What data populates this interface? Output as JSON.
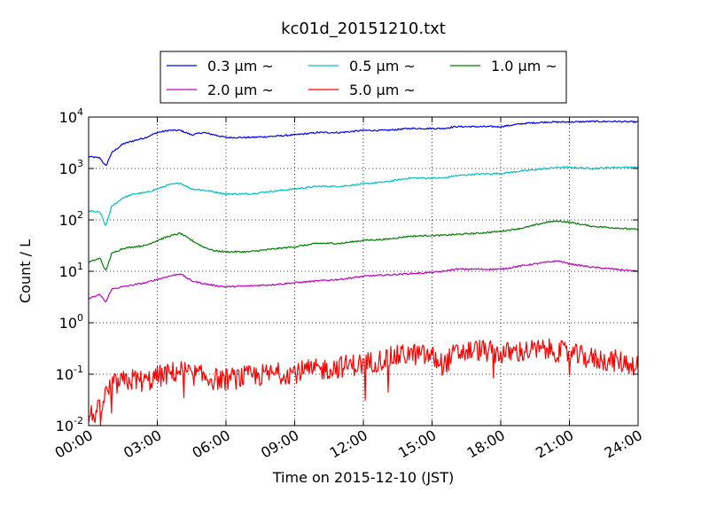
{
  "chart_data": {
    "type": "line",
    "title": "kc01d_20151210.txt",
    "xlabel": "Time on 2015-12-10 (JST)",
    "ylabel": "Count / L",
    "yscale": "log",
    "ylim": [
      0.01,
      10000
    ],
    "xlim": [
      "00:00",
      "24:00"
    ],
    "grid": true,
    "legend_position": "top-center",
    "x_ticks": [
      "00:00",
      "03:00",
      "06:00",
      "09:00",
      "12:00",
      "15:00",
      "18:00",
      "21:00",
      "24:00"
    ],
    "y_ticks": [
      {
        "base": "10",
        "exp": "-2"
      },
      {
        "base": "10",
        "exp": "-1"
      },
      {
        "base": "10",
        "exp": "0"
      },
      {
        "base": "10",
        "exp": "1"
      },
      {
        "base": "10",
        "exp": "2"
      },
      {
        "base": "10",
        "exp": "3"
      },
      {
        "base": "10",
        "exp": "4"
      }
    ],
    "x_hours": [
      0,
      0.5,
      0.75,
      1.0,
      1.5,
      2.0,
      2.5,
      3.0,
      3.5,
      4.0,
      4.5,
      5.0,
      5.5,
      6.0,
      7.0,
      8.0,
      9.0,
      10.0,
      11.0,
      12.0,
      13.0,
      14.0,
      15.0,
      15.5,
      16.0,
      17.0,
      18.0,
      19.0,
      20.0,
      20.5,
      21.0,
      22.0,
      23.0,
      24.0
    ],
    "series": [
      {
        "name": "0.3 μm ~",
        "color": "#0000ff",
        "values": [
          1700,
          1600,
          1100,
          2000,
          3000,
          3500,
          4000,
          5000,
          5500,
          5500,
          4500,
          5000,
          4500,
          4000,
          4000,
          4200,
          4500,
          5000,
          5000,
          5500,
          5500,
          6000,
          6000,
          6000,
          6500,
          6500,
          6500,
          7500,
          8000,
          8000,
          8000,
          8200,
          8200,
          8000
        ]
      },
      {
        "name": "0.5 μm ~",
        "color": "#00c0c0",
        "values": [
          150,
          140,
          75,
          180,
          270,
          320,
          340,
          400,
          480,
          520,
          400,
          380,
          350,
          320,
          320,
          360,
          400,
          450,
          450,
          500,
          550,
          650,
          650,
          650,
          720,
          780,
          800,
          900,
          1000,
          1050,
          1050,
          1000,
          1050,
          1050
        ]
      },
      {
        "name": "1.0 μm ~",
        "color": "#008000",
        "values": [
          15,
          18,
          10,
          22,
          28,
          30,
          32,
          40,
          48,
          55,
          40,
          30,
          25,
          24,
          24,
          27,
          30,
          35,
          35,
          40,
          42,
          48,
          50,
          50,
          52,
          55,
          60,
          70,
          90,
          95,
          90,
          75,
          70,
          65
        ]
      },
      {
        "name": "2.0 μm ~",
        "color": "#c000c0",
        "values": [
          3,
          3.5,
          2.5,
          4.5,
          5,
          5.5,
          6,
          7,
          8,
          9,
          6.5,
          5.8,
          5.3,
          5,
          5.2,
          5.5,
          6,
          6.5,
          7,
          8,
          8.5,
          9,
          9.5,
          10,
          11,
          11,
          11,
          13,
          15,
          16,
          14,
          12,
          11,
          10
        ]
      },
      {
        "name": "5.0 μm ~",
        "color": "#ff0000",
        "values": [
          0.015,
          0.02,
          0.04,
          0.06,
          0.07,
          0.08,
          0.07,
          0.09,
          0.1,
          0.12,
          0.1,
          0.09,
          0.08,
          0.08,
          0.09,
          0.1,
          0.11,
          0.12,
          0.14,
          0.16,
          0.2,
          0.25,
          0.22,
          0.15,
          0.25,
          0.3,
          0.25,
          0.28,
          0.3,
          0.28,
          0.25,
          0.2,
          0.18,
          0.15
        ]
      }
    ]
  }
}
